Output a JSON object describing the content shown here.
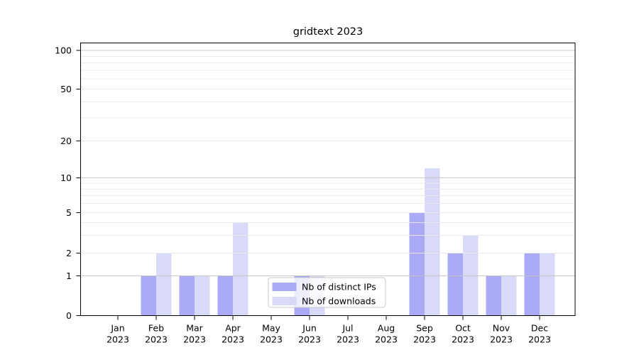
{
  "chart_data": {
    "type": "bar",
    "title": "gridtext 2023",
    "categories": [
      "Jan",
      "Feb",
      "Mar",
      "Apr",
      "May",
      "Jun",
      "Jul",
      "Aug",
      "Sep",
      "Oct",
      "Nov",
      "Dec"
    ],
    "year": "2023",
    "series": [
      {
        "name": "Nb of distinct IPs",
        "color": "#aaaaf6",
        "values": [
          0,
          1,
          1,
          1,
          0,
          1,
          0,
          0,
          5,
          2,
          1,
          2
        ]
      },
      {
        "name": "Nb of downloads",
        "color": "#d9d9f8",
        "values": [
          0,
          2,
          1,
          4,
          0,
          1,
          0,
          0,
          12,
          3,
          1,
          2
        ]
      }
    ],
    "yscale": "symlog",
    "ylim": [
      0,
      115
    ],
    "yticks": [
      0,
      1,
      2,
      5,
      10,
      20,
      50,
      100
    ],
    "grid": {
      "axis": "y",
      "major_values": [
        1,
        10,
        100
      ],
      "minor_values": [
        2,
        3,
        4,
        5,
        6,
        7,
        8,
        9,
        20,
        30,
        40,
        50,
        60,
        70,
        80,
        90
      ],
      "major_color": "#c4c4c4",
      "minor_color": "#eaeaea"
    },
    "legend": {
      "position": "lower center"
    },
    "spine_color": "#000000",
    "background": "#ffffff"
  }
}
